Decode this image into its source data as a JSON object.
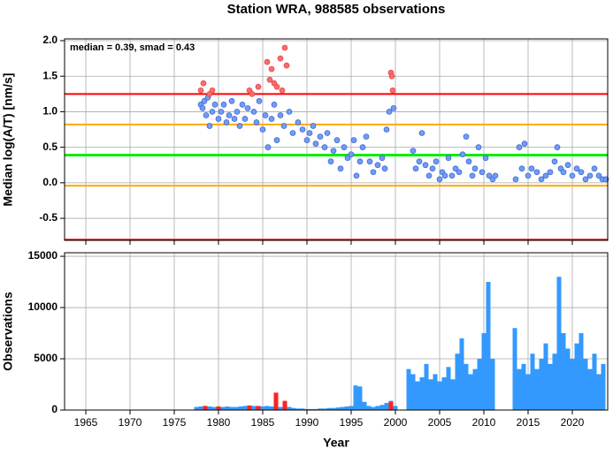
{
  "title": "Station WRA, 988585 observations",
  "chart_data": [
    {
      "type": "scatter",
      "ylabel": "Median log(A/T) [nm/s]",
      "annotation": "median = 0.39, smad = 0.43",
      "xlim": [
        1962.6,
        2024
      ],
      "xticks": [
        1965,
        1970,
        1975,
        1980,
        1985,
        1990,
        1995,
        2000,
        2005,
        2010,
        2015,
        2020
      ],
      "ylim": [
        -0.81,
        2.025
      ],
      "yticks": [
        2.0,
        1.5,
        1.0,
        0.5,
        0.0,
        -0.5
      ],
      "grid": true,
      "hlines": [
        {
          "value": 1.25,
          "color": "#ff0000"
        },
        {
          "value": 0.82,
          "color": "#ffaa00"
        },
        {
          "value": 0.39,
          "color": "#00ee00"
        },
        {
          "value": -0.04,
          "color": "#ffaa00"
        },
        {
          "value": -0.8,
          "color": "#ff0000"
        }
      ],
      "series": [
        {
          "color": "#6f9cf5",
          "x": [
            1978,
            1978.2,
            1978.4,
            1978.6,
            1978.8,
            1979,
            1979.3,
            1979.6,
            1980,
            1980.3,
            1980.6,
            1980.9,
            1981.2,
            1981.5,
            1981.8,
            1982.1,
            1982.4,
            1982.7,
            1983,
            1983.3,
            1984,
            1984.3,
            1984.6,
            1985,
            1985.3,
            1985.6,
            1986,
            1986.3,
            1986.6,
            1987,
            1987.4,
            1988,
            1988.4,
            1989,
            1989.5,
            1990,
            1990.3,
            1990.7,
            1991,
            1991.5,
            1992,
            1992.3,
            1992.7,
            1993,
            1993.4,
            1993.8,
            1994.2,
            1994.6,
            1995,
            1995.3,
            1995.6,
            1996,
            1996.3,
            1996.7,
            1997.1,
            1997.5,
            1998,
            1998.5,
            1999,
            1999.3,
            1998.8,
            1999.8,
            2002,
            2002.3,
            2002.7,
            2003,
            2003.4,
            2003.8,
            2004.2,
            2004.6,
            2005,
            2005.3,
            2005.6,
            2006,
            2006.4,
            2006.8,
            2007.2,
            2007.6,
            2008,
            2008.3,
            2008.7,
            2009,
            2009.4,
            2009.8,
            2010.2,
            2010.6,
            2011,
            2011.3,
            2013.6,
            2014,
            2014.3,
            2014.6,
            2015,
            2015.4,
            2016,
            2016.5,
            2017,
            2017.5,
            2018,
            2018.3,
            2018.7,
            2019,
            2019.5,
            2020,
            2020.5,
            2021,
            2021.5,
            2022,
            2022.5,
            2023,
            2023.4,
            2023.8
          ],
          "values": [
            1.1,
            1.05,
            1.15,
            0.95,
            1.2,
            0.8,
            1.0,
            1.1,
            0.9,
            1.0,
            1.1,
            0.85,
            0.95,
            1.15,
            0.9,
            1.0,
            0.8,
            1.1,
            0.9,
            1.05,
            1.0,
            0.85,
            1.15,
            0.75,
            0.95,
            0.5,
            0.9,
            1.1,
            0.6,
            0.95,
            0.8,
            1.0,
            0.7,
            0.85,
            0.75,
            0.6,
            0.7,
            0.8,
            0.55,
            0.65,
            0.5,
            0.7,
            0.3,
            0.45,
            0.6,
            0.2,
            0.5,
            0.35,
            0.4,
            0.6,
            0.1,
            0.3,
            0.5,
            0.65,
            0.3,
            0.15,
            0.25,
            0.35,
            0.75,
            1.0,
            0.2,
            1.05,
            0.45,
            0.2,
            0.3,
            0.7,
            0.25,
            0.1,
            0.2,
            0.3,
            0.05,
            0.15,
            0.1,
            0.35,
            0.1,
            0.2,
            0.15,
            0.4,
            0.65,
            0.3,
            0.1,
            0.2,
            0.5,
            0.15,
            0.35,
            0.1,
            0.05,
            0.1,
            0.05,
            0.5,
            0.2,
            0.55,
            0.1,
            0.2,
            0.15,
            0.05,
            0.1,
            0.15,
            0.3,
            0.5,
            0.2,
            0.15,
            0.25,
            0.1,
            0.2,
            0.15,
            0.05,
            0.1,
            0.2,
            0.1,
            0.05,
            0.05
          ]
        },
        {
          "color": "#ff6a6a",
          "x": [
            1978,
            1978.3,
            1979,
            1979.3,
            1983.5,
            1983.8,
            1984.5,
            1985.5,
            1985.8,
            1986,
            1986.3,
            1986.6,
            1987,
            1987.2,
            1987.5,
            1987.7,
            1999.5,
            1999.6,
            1999.7
          ],
          "values": [
            1.3,
            1.4,
            1.25,
            1.3,
            1.3,
            1.25,
            1.35,
            1.7,
            1.45,
            1.6,
            1.4,
            1.35,
            1.75,
            1.3,
            1.9,
            1.65,
            1.55,
            1.5,
            1.3
          ]
        }
      ]
    },
    {
      "type": "bar",
      "ylabel": "Observations",
      "xlabel": "Year",
      "xlim": [
        1962.6,
        2024
      ],
      "xticks": [
        1965,
        1970,
        1975,
        1980,
        1985,
        1990,
        1995,
        2000,
        2005,
        2010,
        2015,
        2020
      ],
      "ylim": [
        0,
        15350
      ],
      "yticks": [
        0,
        5000,
        10000,
        15000
      ],
      "grid": true,
      "bar_width": 0.5,
      "series": [
        {
          "color": "#3399ff",
          "x": [
            1977.5,
            1978,
            1978.5,
            1979,
            1979.5,
            1980,
            1980.5,
            1981,
            1981.5,
            1982,
            1982.5,
            1983,
            1983.5,
            1984,
            1984.5,
            1985,
            1985.5,
            1986,
            1986.5,
            1987,
            1987.5,
            1988,
            1988.5,
            1989,
            1989.5,
            1990,
            1990.5,
            1991,
            1991.5,
            1992,
            1992.5,
            1993,
            1993.5,
            1994,
            1994.5,
            1995,
            1995.5,
            1996,
            1996.5,
            1997,
            1997.5,
            1998,
            1998.5,
            1999,
            1999.5,
            2000,
            2000.5,
            2001,
            2001.5,
            2002,
            2002.5,
            2003,
            2003.5,
            2004,
            2004.5,
            2005,
            2005.5,
            2006,
            2006.5,
            2007,
            2007.5,
            2008,
            2008.5,
            2009,
            2009.5,
            2010,
            2010.5,
            2011,
            2011.5,
            2012,
            2012.5,
            2013,
            2013.5,
            2014,
            2014.5,
            2015,
            2015.5,
            2016,
            2016.5,
            2017,
            2017.5,
            2018,
            2018.5,
            2019,
            2019.5,
            2020,
            2020.5,
            2021,
            2021.5,
            2022,
            2022.5,
            2023,
            2023.5
          ],
          "values": [
            300,
            350,
            400,
            350,
            300,
            350,
            300,
            350,
            300,
            300,
            350,
            400,
            350,
            400,
            300,
            350,
            400,
            350,
            400,
            300,
            350,
            300,
            200,
            150,
            150,
            100,
            100,
            100,
            150,
            150,
            200,
            200,
            250,
            300,
            350,
            400,
            2400,
            2300,
            800,
            400,
            300,
            400,
            500,
            700,
            900,
            400,
            0,
            0,
            4000,
            3500,
            2800,
            3200,
            4500,
            3000,
            3500,
            2800,
            3200,
            4200,
            3000,
            5500,
            7000,
            4500,
            3500,
            4000,
            5000,
            7500,
            12500,
            5000,
            0,
            0,
            0,
            0,
            8000,
            4000,
            4500,
            3500,
            5500,
            4000,
            5000,
            6500,
            4500,
            5500,
            13000,
            7500,
            6000,
            5000,
            6500,
            7500,
            5000,
            4000,
            5500,
            3500,
            4500
          ]
        },
        {
          "color": "#ff2222",
          "x": [
            1978.5,
            1980,
            1983.5,
            1984.5,
            1986.5,
            1987.5,
            1999.5
          ],
          "values": [
            400,
            350,
            450,
            400,
            1700,
            900,
            800
          ]
        }
      ]
    }
  ]
}
